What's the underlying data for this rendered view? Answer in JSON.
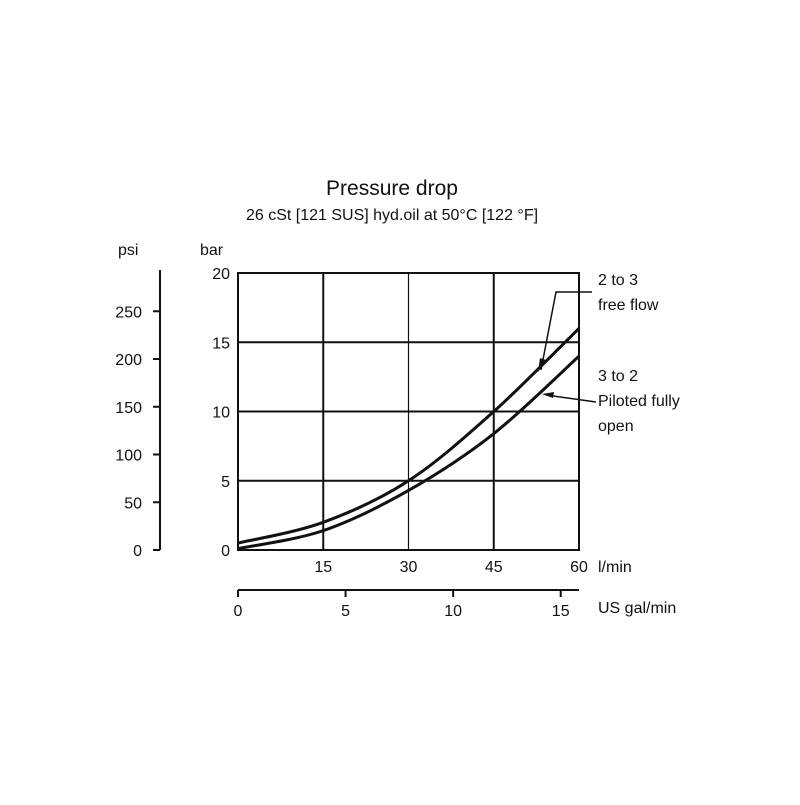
{
  "chart_data": {
    "type": "line",
    "title": "Pressure drop",
    "subtitle": "26 cSt [121 SUS] hyd.oil at 50°C [122 °F]",
    "x_axis": {
      "label": "l/min",
      "range": [
        0,
        60
      ],
      "ticks": [
        "15",
        "30",
        "45",
        "60"
      ],
      "tick_values": [
        15,
        30,
        45,
        60
      ]
    },
    "x2_axis": {
      "label": "US gal/min",
      "range": [
        0,
        15.85
      ],
      "ticks": [
        "0",
        "5",
        "10",
        "15"
      ],
      "tick_values": [
        0,
        5,
        10,
        15
      ]
    },
    "y_axis": {
      "label": "bar",
      "range": [
        0,
        20
      ],
      "ticks": [
        "0",
        "5",
        "10",
        "15",
        "20"
      ],
      "tick_values": [
        0,
        5,
        10,
        15,
        20
      ]
    },
    "y2_axis": {
      "label": "psi",
      "range": [
        0,
        290
      ],
      "ticks": [
        "0",
        "50",
        "100",
        "150",
        "200",
        "250"
      ],
      "tick_values": [
        0,
        50,
        100,
        150,
        200,
        250
      ]
    },
    "grid": true,
    "series": [
      {
        "name": "2 to 3 free flow",
        "label_lines": [
          "2 to 3",
          "free flow"
        ],
        "x": [
          0,
          15,
          30,
          45,
          60
        ],
        "y": [
          0.5,
          2.0,
          5.0,
          10.0,
          16.0
        ]
      },
      {
        "name": "3 to 2 Piloted fully open",
        "label_lines": [
          "3 to 2",
          "Piloted fully",
          "open"
        ],
        "x": [
          0,
          15,
          30,
          45,
          60
        ],
        "y": [
          0.1,
          1.4,
          4.3,
          8.4,
          14.0
        ]
      }
    ],
    "colors": {
      "line": "#111111",
      "grid": "#111111"
    }
  }
}
